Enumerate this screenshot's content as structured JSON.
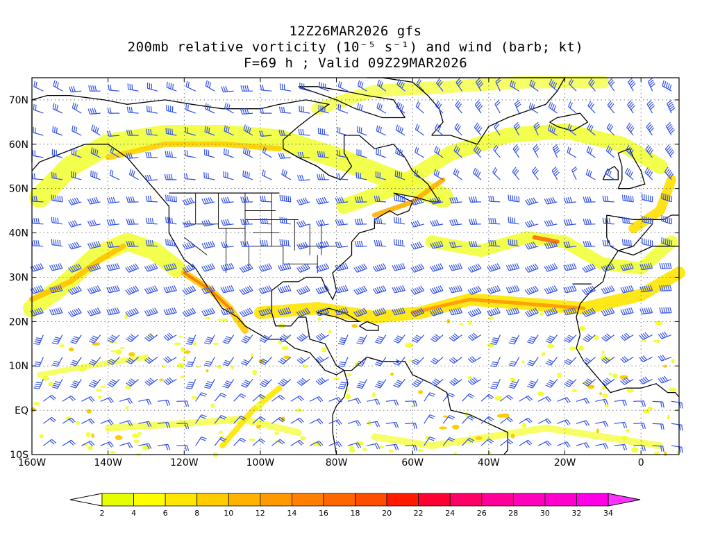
{
  "title": {
    "line1": "12Z26MAR2026 gfs",
    "line2": "200mb relative vorticity (10⁻⁵ s⁻¹) and wind (barb; kt)",
    "line3": "F=69 h ; Valid 09Z29MAR2026"
  },
  "map": {
    "lon_range": [
      -160,
      10
    ],
    "lat_range": [
      -10,
      75
    ],
    "x_ticks": [
      {
        "value": -160,
        "label": "160W"
      },
      {
        "value": -140,
        "label": "140W"
      },
      {
        "value": -120,
        "label": "120W"
      },
      {
        "value": -100,
        "label": "100W"
      },
      {
        "value": -80,
        "label": "80W"
      },
      {
        "value": -60,
        "label": "60W"
      },
      {
        "value": -40,
        "label": "40W"
      },
      {
        "value": -20,
        "label": "20W"
      },
      {
        "value": 0,
        "label": "0"
      }
    ],
    "y_ticks": [
      {
        "value": -10,
        "label": "10S"
      },
      {
        "value": 0,
        "label": "EQ"
      },
      {
        "value": 10,
        "label": "10N"
      },
      {
        "value": 20,
        "label": "20N"
      },
      {
        "value": 30,
        "label": "30N"
      },
      {
        "value": 40,
        "label": "40N"
      },
      {
        "value": 50,
        "label": "50N"
      },
      {
        "value": 60,
        "label": "60N"
      },
      {
        "value": 70,
        "label": "70N"
      }
    ],
    "grid_lines": "dotted",
    "barb_color": "#3050e8",
    "coast_color": "#000000"
  },
  "colorbar": {
    "labels": [
      "2",
      "4",
      "6",
      "8",
      "10",
      "12",
      "14",
      "16",
      "18",
      "20",
      "22",
      "24",
      "26",
      "28",
      "30",
      "32",
      "34"
    ],
    "colors": [
      "#e6ff00",
      "#ffff00",
      "#ffe600",
      "#ffcc00",
      "#ffb300",
      "#ff9900",
      "#ff8000",
      "#ff6600",
      "#ff4d00",
      "#ff1a00",
      "#ff0033",
      "#ff0066",
      "#ff0099",
      "#ff00bb",
      "#ff00cc",
      "#ff00e6"
    ],
    "under_color": "#ffffff",
    "over_color": "#ff33ff"
  }
}
